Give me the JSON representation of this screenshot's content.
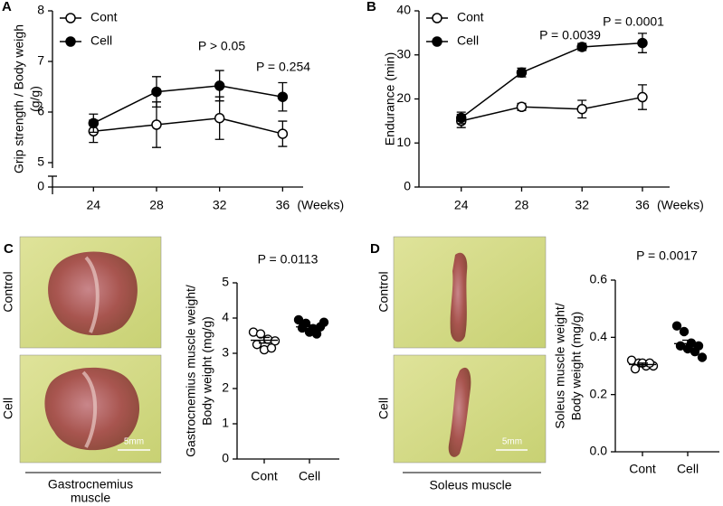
{
  "chart_data": [
    {
      "type": "line",
      "panel": "A",
      "ylabel": [
        "Grip strength / Body weigh",
        "(g/g)"
      ],
      "xlabel": "(Weeks)",
      "x": [
        24,
        28,
        32,
        36
      ],
      "xlim": [
        21.4,
        37.3
      ],
      "xticks": [
        24,
        28,
        32,
        36
      ],
      "ylim": [
        0,
        8
      ],
      "yticks": [
        0,
        5,
        6,
        7,
        8
      ],
      "axis_break": true,
      "legend": "upper left",
      "annotations": [
        "P > 0.05",
        "P = 0.254"
      ],
      "series": [
        {
          "name": "Cont",
          "color": "#000000",
          "fill": "#ffffff",
          "values": [
            5.62,
            5.75,
            5.88,
            5.57
          ],
          "errors": [
            0.22,
            0.45,
            0.42,
            0.25
          ]
        },
        {
          "name": "Cell",
          "color": "#000000",
          "fill": "#000000",
          "values": [
            5.78,
            6.4,
            6.52,
            6.3
          ],
          "errors": [
            0.18,
            0.3,
            0.3,
            0.28
          ]
        }
      ]
    },
    {
      "type": "line",
      "panel": "B",
      "ylabel": [
        "Endurance (min)"
      ],
      "xlabel": "(Weeks)",
      "x": [
        24,
        28,
        32,
        36
      ],
      "xlim": [
        21.2,
        37.8
      ],
      "xticks": [
        24,
        28,
        32,
        36
      ],
      "ylim": [
        0,
        40
      ],
      "yticks": [
        0,
        10,
        20,
        30,
        40
      ],
      "legend": "upper left",
      "annotations": [
        "P = 0.0039",
        "P = 0.0001"
      ],
      "series": [
        {
          "name": "Cont",
          "color": "#000000",
          "fill": "#ffffff",
          "values": [
            15,
            18.2,
            17.7,
            20.4
          ],
          "errors": [
            1.5,
            0.8,
            2,
            2.8
          ]
        },
        {
          "name": "Cell",
          "color": "#000000",
          "fill": "#000000",
          "values": [
            15.7,
            26,
            31.8,
            32.7
          ],
          "errors": [
            1.3,
            1,
            0.8,
            2.2
          ]
        }
      ]
    },
    {
      "type": "dot",
      "panel": "C",
      "ylabel": [
        "Gastrocnemius muscle weight/",
        "Body weight  (mg/g)"
      ],
      "image_labels": [
        "Control",
        "Cell"
      ],
      "scale_bar": "5mm",
      "caption": [
        "Gastrocnemius",
        "muscle"
      ],
      "categories": [
        "Cont",
        "Cell"
      ],
      "ylim": [
        0,
        5
      ],
      "yticks": [
        0,
        1,
        2,
        3,
        4,
        5
      ],
      "annotations": [
        "P = 0.0113"
      ],
      "groups": [
        {
          "fill": "#ffffff",
          "values": [
            3.6,
            3.55,
            3.4,
            3.35,
            3.25,
            3.1,
            3.15
          ],
          "mean": 3.37,
          "sem": 0.08
        },
        {
          "fill": "#000000",
          "values": [
            3.95,
            3.85,
            3.7,
            3.75,
            3.72,
            3.6,
            3.55,
            3.88
          ],
          "mean": 3.75,
          "sem": 0.05
        }
      ]
    },
    {
      "type": "dot",
      "panel": "D",
      "ylabel": [
        "Soleus muscle weight/",
        "Body weight  (mg/g)"
      ],
      "image_labels": [
        "Control",
        "Cell"
      ],
      "scale_bar": "5mm",
      "caption": [
        "Soleus muscle"
      ],
      "categories": [
        "Cont",
        "Cell"
      ],
      "ylim": [
        0,
        0.6
      ],
      "yticks": [
        {
          "value": 0,
          "label": "0.0"
        },
        0.2,
        0.4,
        0.6
      ],
      "annotations": [
        "P = 0.0017"
      ],
      "groups": [
        {
          "fill": "#ffffff",
          "values": [
            0.32,
            0.31,
            0.3,
            0.3,
            0.29,
            0.31,
            0.31
          ],
          "mean": 0.305,
          "sem": 0.005
        },
        {
          "fill": "#000000",
          "values": [
            0.44,
            0.42,
            0.38,
            0.37,
            0.37,
            0.36,
            0.35,
            0.33
          ],
          "mean": 0.378,
          "sem": 0.012
        }
      ]
    }
  ]
}
